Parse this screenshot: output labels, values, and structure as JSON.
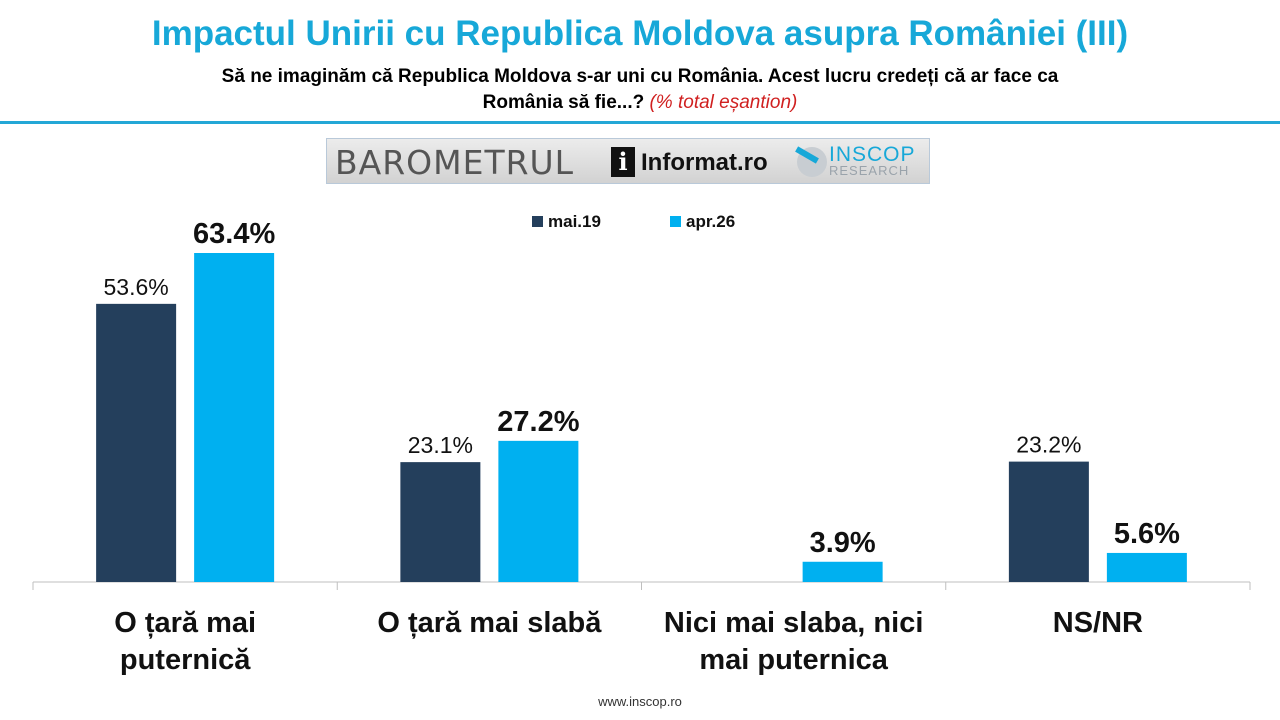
{
  "header": {
    "title": "Impactul Unirii cu Republica Moldova asupra României (III)",
    "question_line1": "Să ne imaginăm că Republica Moldova s-ar uni cu România. Acest lucru credeți că ar face ca",
    "question_line2": "România să fie...?",
    "question_note": "(% total eșantion)"
  },
  "branding": {
    "barometrul": "BAROMETRUL",
    "informat_icon": "i",
    "informat": "Informat.ro",
    "inscop": "INSCOP",
    "research": "RESEARCH"
  },
  "footer": {
    "url": "www.inscop.ro"
  },
  "colors": {
    "mai19": "#243f5c",
    "apr26": "#00b0f0",
    "title": "#17a8d8"
  },
  "chart_data": {
    "type": "bar",
    "categories": [
      [
        "O țară mai",
        "puternică"
      ],
      [
        "O țară mai slabă"
      ],
      [
        "Nici mai slaba, nici",
        "mai puternica"
      ],
      [
        "NS/NR"
      ]
    ],
    "series": [
      {
        "name": "mai.19",
        "values": [
          53.6,
          23.1,
          null,
          23.2
        ],
        "labels": [
          "53.6%",
          "23.1%",
          "",
          "23.2%"
        ]
      },
      {
        "name": "apr.26",
        "values": [
          63.4,
          27.2,
          3.9,
          5.6
        ],
        "labels": [
          "63.4%",
          "27.2%",
          "3.9%",
          "5.6%"
        ]
      }
    ],
    "legend": "top-center",
    "ylim": [
      0,
      70
    ],
    "grid": false
  }
}
